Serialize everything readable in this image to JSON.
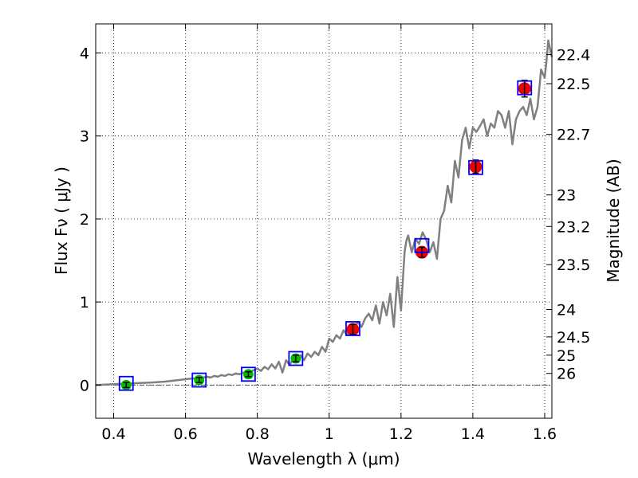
{
  "chart_data": {
    "type": "scatter",
    "xlabel": "Wavelength  λ (μm)",
    "ylabel": "Flux  Fν  ( μJy )",
    "y2label": "Magnitude (AB)",
    "xlim": [
      0.35,
      1.62
    ],
    "ylim": [
      -0.4,
      4.35
    ],
    "grid": true,
    "x_ticks": [
      0.4,
      0.6,
      0.8,
      1.0,
      1.2,
      1.4,
      1.6
    ],
    "x_tick_labels": [
      "0.4",
      "0.6",
      "0.8",
      "1",
      "1.2",
      "1.4",
      "1.6"
    ],
    "y_ticks": [
      0,
      1,
      2,
      3,
      4
    ],
    "y_tick_labels": [
      "0",
      "1",
      "2",
      "3",
      "4"
    ],
    "y2_ticks": [
      {
        "label": "22.4",
        "flux": 3.98
      },
      {
        "label": "22.5",
        "flux": 3.63
      },
      {
        "label": "22.7",
        "flux": 3.02
      },
      {
        "label": "23",
        "flux": 2.29
      },
      {
        "label": "23.2",
        "flux": 1.91
      },
      {
        "label": "23.5",
        "flux": 1.45
      },
      {
        "label": "24",
        "flux": 0.91
      },
      {
        "label": "24.5",
        "flux": 0.58
      },
      {
        "label": "25",
        "flux": 0.36
      },
      {
        "label": "26",
        "flux": 0.14
      }
    ],
    "colors": {
      "spectrum": "#808080",
      "model": "#0000ff",
      "green": "#00bb00",
      "red": "#ee0000",
      "zero_line": "#555555"
    },
    "series": [
      {
        "kind": "model_photometry",
        "marker": "open-square",
        "x": [
          0.435,
          0.638,
          0.775,
          0.907,
          1.066,
          1.258,
          1.408,
          1.544
        ],
        "y": [
          0.02,
          0.06,
          0.13,
          0.32,
          0.68,
          1.68,
          2.62,
          3.58
        ]
      },
      {
        "kind": "observed_optical",
        "marker": "filled-circle",
        "x": [
          0.435,
          0.638,
          0.775,
          0.907
        ],
        "y": [
          0.0,
          0.06,
          0.13,
          0.32
        ],
        "err": [
          0.03,
          0.03,
          0.03,
          0.04
        ]
      },
      {
        "kind": "observed_nir",
        "marker": "filled-circle",
        "x": [
          1.066,
          1.258,
          1.408,
          1.544
        ],
        "y": [
          0.67,
          1.6,
          2.63,
          3.57
        ],
        "err": [
          0.06,
          0.06,
          0.08,
          0.1
        ]
      },
      {
        "kind": "spectrum",
        "marker": "line",
        "x": [
          0.35,
          0.4,
          0.45,
          0.5,
          0.54,
          0.56,
          0.58,
          0.6,
          0.62,
          0.64,
          0.65,
          0.66,
          0.67,
          0.68,
          0.69,
          0.7,
          0.71,
          0.72,
          0.73,
          0.74,
          0.75,
          0.76,
          0.77,
          0.78,
          0.79,
          0.8,
          0.81,
          0.82,
          0.83,
          0.84,
          0.85,
          0.86,
          0.87,
          0.88,
          0.89,
          0.9,
          0.91,
          0.92,
          0.93,
          0.94,
          0.95,
          0.96,
          0.97,
          0.98,
          0.99,
          1.0,
          1.01,
          1.02,
          1.03,
          1.04,
          1.05,
          1.06,
          1.07,
          1.08,
          1.09,
          1.1,
          1.11,
          1.12,
          1.13,
          1.14,
          1.15,
          1.16,
          1.17,
          1.18,
          1.19,
          1.2,
          1.21,
          1.215,
          1.22,
          1.23,
          1.24,
          1.25,
          1.26,
          1.27,
          1.28,
          1.29,
          1.3,
          1.31,
          1.32,
          1.33,
          1.34,
          1.35,
          1.36,
          1.37,
          1.38,
          1.39,
          1.4,
          1.41,
          1.42,
          1.43,
          1.44,
          1.45,
          1.46,
          1.47,
          1.48,
          1.49,
          1.5,
          1.51,
          1.52,
          1.53,
          1.54,
          1.55,
          1.56,
          1.57,
          1.58,
          1.59,
          1.6,
          1.605,
          1.61,
          1.62
        ],
        "y": [
          0.0,
          0.01,
          0.02,
          0.03,
          0.04,
          0.05,
          0.06,
          0.07,
          0.08,
          0.07,
          0.09,
          0.1,
          0.09,
          0.11,
          0.1,
          0.12,
          0.11,
          0.13,
          0.12,
          0.14,
          0.13,
          0.15,
          0.14,
          0.16,
          0.18,
          0.2,
          0.17,
          0.22,
          0.19,
          0.25,
          0.2,
          0.28,
          0.15,
          0.3,
          0.24,
          0.32,
          0.28,
          0.36,
          0.3,
          0.38,
          0.34,
          0.4,
          0.36,
          0.46,
          0.4,
          0.56,
          0.52,
          0.6,
          0.56,
          0.66,
          0.6,
          0.72,
          0.68,
          0.76,
          0.7,
          0.8,
          0.86,
          0.78,
          0.96,
          0.74,
          1.0,
          0.84,
          1.1,
          0.7,
          1.3,
          0.9,
          1.6,
          1.74,
          1.8,
          1.6,
          1.76,
          1.7,
          1.84,
          1.75,
          1.6,
          1.72,
          1.52,
          2.0,
          2.1,
          2.4,
          2.2,
          2.7,
          2.5,
          2.95,
          3.1,
          2.85,
          3.1,
          3.05,
          3.12,
          3.2,
          3.0,
          3.15,
          3.1,
          3.3,
          3.25,
          3.1,
          3.3,
          2.9,
          3.2,
          3.3,
          3.35,
          3.25,
          3.45,
          3.2,
          3.35,
          3.8,
          3.7,
          3.9,
          4.15,
          3.95
        ]
      }
    ]
  }
}
